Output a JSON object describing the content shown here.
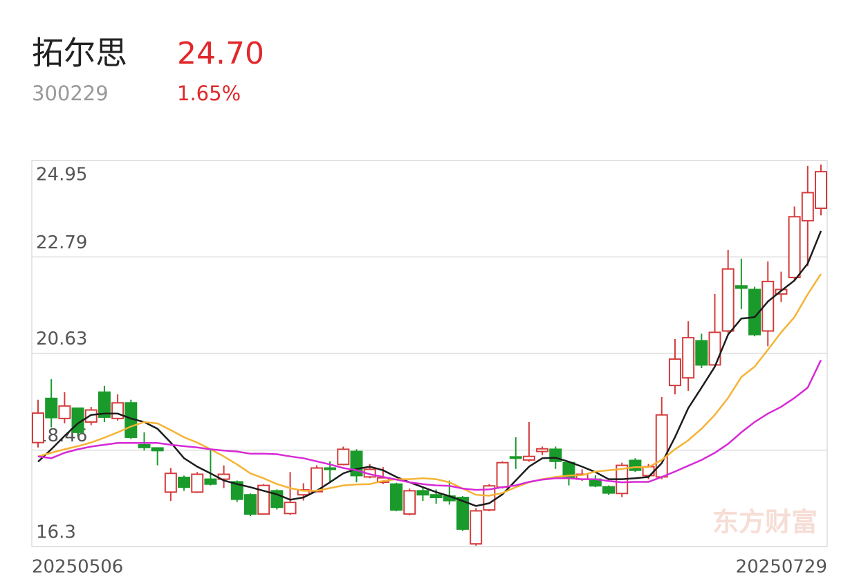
{
  "header": {
    "name": "拓尔思",
    "code": "300229",
    "price": "24.70",
    "change": "1.65%"
  },
  "chart_data": {
    "type": "candlestick",
    "watermark": "东方财富",
    "categories": [
      "20250506",
      null,
      null,
      null,
      null,
      null,
      null,
      null,
      null,
      null,
      null,
      null,
      null,
      null,
      null,
      null,
      null,
      null,
      null,
      null,
      null,
      null,
      null,
      null,
      null,
      null,
      null,
      null,
      null,
      null,
      null,
      null,
      null,
      null,
      null,
      null,
      null,
      null,
      null,
      null,
      null,
      null,
      null,
      null,
      null,
      null,
      null,
      null,
      null,
      null,
      null,
      null,
      null,
      null,
      null,
      null,
      null,
      null,
      null,
      "20250729"
    ],
    "open": [
      18.63,
      19.62,
      19.17,
      19.4,
      19.09,
      19.76,
      19.17,
      19.52,
      18.58,
      18.51,
      17.52,
      17.85,
      17.52,
      17.81,
      17.81,
      17.75,
      17.46,
      17.03,
      17.55,
      17.04,
      17.46,
      17.53,
      18.06,
      18.14,
      18.43,
      17.86,
      17.74,
      17.7,
      17.03,
      17.55,
      17.46,
      17.43,
      17.4,
      16.36,
      17.12,
      17.63,
      18.31,
      18.24,
      18.43,
      18.48,
      18.18,
      17.81,
      17.81,
      17.64,
      17.49,
      18.23,
      17.89,
      17.86,
      19.91,
      20.08,
      20.91,
      20.37,
      21.13,
      22.14,
      22.06,
      21.13,
      21.96,
      22.33,
      23.6,
      23.88
    ],
    "high": [
      19.59,
      20.05,
      19.76,
      19.4,
      19.43,
      19.9,
      19.71,
      19.59,
      18.86,
      18.51,
      18.06,
      17.89,
      17.97,
      18.48,
      18.12,
      17.78,
      17.49,
      17.7,
      17.58,
      17.97,
      17.72,
      18.12,
      18.21,
      18.54,
      18.48,
      18.15,
      18.08,
      17.73,
      17.6,
      17.63,
      17.58,
      17.78,
      17.43,
      17.16,
      17.7,
      18.21,
      18.75,
      19.09,
      18.54,
      18.54,
      18.21,
      18.03,
      17.9,
      17.67,
      18.18,
      18.28,
      18.15,
      19.65,
      20.95,
      21.35,
      21.07,
      21.96,
      22.95,
      22.75,
      22.12,
      22.69,
      22.46,
      23.92,
      24.83,
      24.86
    ],
    "low": [
      18.52,
      18.97,
      19.06,
      18.78,
      19.02,
      19.09,
      19.12,
      18.71,
      18.45,
      18.12,
      17.32,
      17.55,
      17.5,
      17.67,
      17.61,
      17.3,
      16.98,
      17.03,
      17.13,
      17.01,
      17.33,
      17.52,
      17.75,
      18.12,
      17.74,
      17.83,
      17.7,
      17.09,
      17.0,
      17.32,
      17.26,
      17.24,
      16.65,
      16.32,
      17.09,
      17.6,
      18.04,
      18.2,
      18.35,
      18.04,
      17.67,
      17.77,
      17.63,
      17.46,
      17.41,
      17.97,
      17.81,
      17.81,
      19.71,
      19.79,
      20.3,
      20.33,
      21.08,
      21.62,
      21.01,
      20.79,
      21.78,
      22.27,
      22.58,
      23.72
    ],
    "close": [
      19.29,
      19.19,
      19.45,
      18.86,
      19.36,
      19.2,
      19.52,
      18.75,
      18.52,
      18.45,
      17.94,
      17.63,
      17.92,
      17.7,
      17.92,
      17.36,
      17.03,
      17.67,
      17.18,
      17.29,
      17.57,
      18.06,
      18.03,
      18.48,
      17.89,
      18.03,
      17.84,
      17.12,
      17.55,
      17.46,
      17.4,
      17.33,
      16.69,
      17.1,
      17.66,
      18.18,
      18.28,
      18.32,
      18.49,
      18.21,
      17.83,
      17.92,
      17.66,
      17.5,
      18.12,
      18.01,
      18.09,
      19.25,
      20.5,
      20.98,
      20.37,
      21.1,
      22.52,
      22.09,
      21.05,
      22.24,
      22.06,
      23.69,
      24.23,
      24.7
    ],
    "up_color": "#d43c3c",
    "down_color": "#1a9a2a",
    "series": [
      {
        "color": "#1c1c1c",
        "values": [
          18.2,
          18.48,
          18.78,
          19.06,
          19.25,
          19.28,
          19.28,
          19.17,
          19.09,
          18.94,
          18.63,
          18.28,
          18.09,
          17.94,
          17.78,
          17.7,
          17.63,
          17.55,
          17.47,
          17.35,
          17.4,
          17.55,
          17.74,
          17.94,
          18.04,
          18.09,
          18.01,
          17.86,
          17.74,
          17.63,
          17.52,
          17.43,
          17.32,
          17.21,
          17.27,
          17.47,
          17.78,
          18.09,
          18.28,
          18.29,
          18.2,
          18.09,
          17.97,
          17.81,
          17.81,
          17.83,
          17.86,
          18.17,
          18.75,
          19.4,
          19.86,
          20.33,
          21.05,
          21.41,
          21.44,
          21.79,
          22.03,
          22.26,
          22.64,
          23.37
        ]
      },
      {
        "color": "#f5b335",
        "values": [
          18.32,
          18.4,
          18.48,
          18.55,
          18.63,
          18.74,
          18.86,
          18.99,
          19.09,
          19.06,
          18.91,
          18.75,
          18.63,
          18.48,
          18.32,
          18.14,
          17.94,
          17.83,
          17.7,
          17.61,
          17.55,
          17.55,
          17.61,
          17.67,
          17.69,
          17.7,
          17.77,
          17.81,
          17.81,
          17.83,
          17.81,
          17.74,
          17.6,
          17.46,
          17.44,
          17.5,
          17.63,
          17.74,
          17.81,
          17.86,
          17.89,
          17.9,
          17.98,
          18.01,
          18.04,
          18.08,
          18.08,
          18.24,
          18.48,
          18.68,
          18.94,
          19.25,
          19.63,
          20.1,
          20.33,
          20.71,
          21.1,
          21.44,
          21.95,
          22.41
        ]
      },
      {
        "color": "#d62ad6",
        "values": [
          18.32,
          18.28,
          18.4,
          18.48,
          18.54,
          18.58,
          18.62,
          18.62,
          18.62,
          18.62,
          18.58,
          18.55,
          18.52,
          18.48,
          18.45,
          18.43,
          18.38,
          18.38,
          18.37,
          18.32,
          18.28,
          18.21,
          18.14,
          18.06,
          18.01,
          17.92,
          17.86,
          17.8,
          17.74,
          17.7,
          17.67,
          17.66,
          17.6,
          17.57,
          17.58,
          17.63,
          17.67,
          17.75,
          17.8,
          17.83,
          17.83,
          17.81,
          17.81,
          17.77,
          17.74,
          17.75,
          17.75,
          17.86,
          17.98,
          18.11,
          18.24,
          18.4,
          18.6,
          18.86,
          19.09,
          19.28,
          19.43,
          19.63,
          19.86,
          20.48
        ]
      }
    ],
    "ylim": [
      16.3,
      24.95
    ],
    "yticks": [
      16.3,
      18.46,
      20.63,
      22.79,
      24.95
    ],
    "grid": true
  }
}
